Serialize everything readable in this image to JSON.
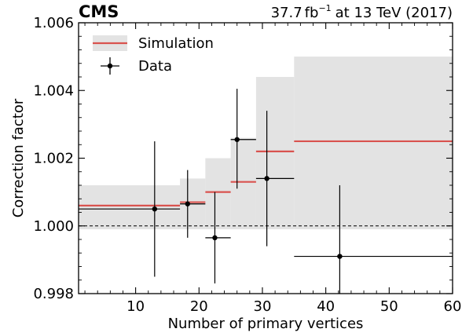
{
  "header": {
    "experiment": "CMS",
    "lumi": "37.7",
    "lumi_unit": "fb",
    "lumi_exp": "−1",
    "energy": "at 13 TeV (2017)"
  },
  "chart_data": {
    "type": "step",
    "title": "",
    "xlabel": "Number of primary vertices",
    "ylabel": "Correction factor",
    "xlim": [
      1,
      60
    ],
    "ylim": [
      0.998,
      1.006
    ],
    "xticks": [
      10,
      20,
      30,
      40,
      50,
      60
    ],
    "yticks": [
      0.998,
      1.0,
      1.002,
      1.004,
      1.006
    ],
    "ytick_labels": [
      "0.998",
      "1.000",
      "1.002",
      "1.004",
      "1.006"
    ],
    "reference_line": 1.0,
    "legend": {
      "position": "top-left",
      "entries": [
        "Simulation",
        "Data"
      ]
    },
    "colors": {
      "simulation": "#d9534f",
      "band": "#e3e3e3",
      "data": "#000000"
    },
    "series": [
      {
        "name": "Simulation",
        "bins": [
          {
            "xlow": 1,
            "xhigh": 17,
            "value": 1.0006,
            "unc_low": 0.9999,
            "unc_high": 1.0012
          },
          {
            "xlow": 17,
            "xhigh": 21,
            "value": 1.0007,
            "unc_low": 0.9999,
            "unc_high": 1.0014
          },
          {
            "xlow": 21,
            "xhigh": 25,
            "value": 1.001,
            "unc_low": 0.9999,
            "unc_high": 1.002
          },
          {
            "xlow": 25,
            "xhigh": 29,
            "value": 1.0013,
            "unc_low": 0.9999,
            "unc_high": 1.0026
          },
          {
            "xlow": 29,
            "xhigh": 35,
            "value": 1.0022,
            "unc_low": 0.9999,
            "unc_high": 1.0044
          },
          {
            "xlow": 35,
            "xhigh": 60,
            "value": 1.0025,
            "unc_low": 0.9999,
            "unc_high": 1.005
          }
        ]
      },
      {
        "name": "Data",
        "points": [
          {
            "x": 13.0,
            "xlow": 1,
            "xhigh": 17,
            "y": 1.0005,
            "ylow": 0.9985,
            "yhigh": 1.0025
          },
          {
            "x": 18.2,
            "xlow": 17,
            "xhigh": 21,
            "y": 1.00065,
            "ylow": 0.99965,
            "yhigh": 1.00165
          },
          {
            "x": 22.5,
            "xlow": 21,
            "xhigh": 25,
            "y": 0.99965,
            "ylow": 0.9983,
            "yhigh": 1.001
          },
          {
            "x": 26.0,
            "xlow": 25,
            "xhigh": 29,
            "y": 1.00255,
            "ylow": 1.0011,
            "yhigh": 1.00405
          },
          {
            "x": 30.7,
            "xlow": 29,
            "xhigh": 35,
            "y": 1.0014,
            "ylow": 0.9994,
            "yhigh": 1.0034
          },
          {
            "x": 42.2,
            "xlow": 35,
            "xhigh": 60,
            "y": 0.9991,
            "ylow": 0.998,
            "yhigh": 1.0012
          }
        ]
      }
    ]
  }
}
